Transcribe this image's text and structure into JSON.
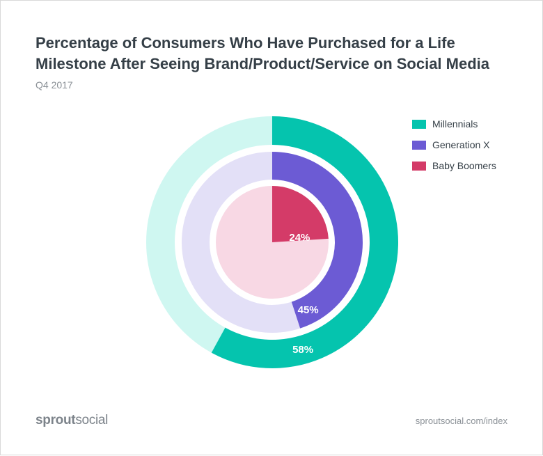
{
  "title_line1": "Percentage of Consumers Who Have Purchased for a Life",
  "title_line2": "Milestone After Seeing Brand/Product/Service on Social Media",
  "subtitle": "Q4 2017",
  "chart_data": {
    "type": "radial-progress",
    "series": [
      {
        "name": "Millennials",
        "value": 58,
        "label": "58%",
        "color": "#05c4ae",
        "track_color": "#cff7f1"
      },
      {
        "name": "Generation X",
        "value": 45,
        "label": "45%",
        "color": "#6c5bd4",
        "track_color": "#e3e0f7"
      },
      {
        "name": "Baby Boomers",
        "value": 24,
        "label": "24%",
        "color": "#d43b68",
        "track_color": "#f8d8e4"
      }
    ],
    "unit": "%",
    "max": 100,
    "legend_position": "top-right"
  },
  "brand": {
    "part1": "sprout",
    "part2": "social"
  },
  "source": "sproutsocial.com/index"
}
